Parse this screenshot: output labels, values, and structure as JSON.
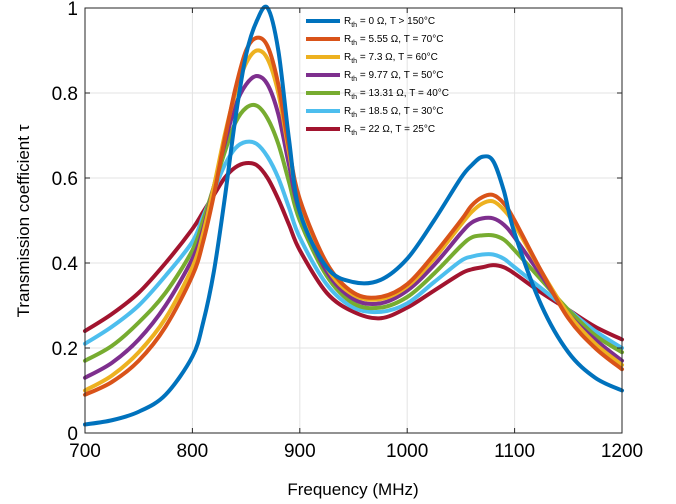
{
  "chart_data": {
    "type": "line",
    "title": "",
    "xlabel": "Frequency (MHz)",
    "ylabel": "Transmission coefficient τ",
    "xlim": [
      700,
      1200
    ],
    "ylim": [
      0,
      1
    ],
    "xticks": [
      700,
      800,
      900,
      1000,
      1100,
      1200
    ],
    "yticks": [
      0,
      0.2,
      0.4,
      0.6,
      0.8,
      1
    ],
    "xtick_labels": [
      "700",
      "800",
      "900",
      "1000",
      "1100",
      "1200"
    ],
    "ytick_labels": [
      "0",
      "0.2",
      "0.4",
      "0.6",
      "0.8",
      "1"
    ],
    "grid": true,
    "legend_position": "top-right",
    "x": [
      700,
      725,
      750,
      775,
      800,
      810,
      820,
      830,
      840,
      850,
      860,
      870,
      880,
      890,
      900,
      925,
      950,
      975,
      1000,
      1025,
      1050,
      1060,
      1070,
      1080,
      1090,
      1100,
      1125,
      1150,
      1175,
      1200
    ],
    "series": [
      {
        "name_main": "R",
        "name_sub": "th",
        "name_rest": " = 0 Ω, T > 150°C",
        "color": "#0072BD",
        "values": [
          0.02,
          0.03,
          0.05,
          0.09,
          0.18,
          0.26,
          0.38,
          0.55,
          0.74,
          0.89,
          0.97,
          1.0,
          0.9,
          0.69,
          0.52,
          0.39,
          0.355,
          0.36,
          0.41,
          0.5,
          0.6,
          0.63,
          0.65,
          0.64,
          0.57,
          0.47,
          0.3,
          0.19,
          0.13,
          0.1
        ]
      },
      {
        "name_main": "R",
        "name_sub": "th",
        "name_rest": " = 5.55 Ω, T = 70°C",
        "color": "#D95319",
        "values": [
          0.09,
          0.12,
          0.17,
          0.25,
          0.37,
          0.45,
          0.56,
          0.69,
          0.81,
          0.9,
          0.93,
          0.91,
          0.82,
          0.67,
          0.55,
          0.4,
          0.33,
          0.32,
          0.35,
          0.42,
          0.5,
          0.535,
          0.555,
          0.56,
          0.54,
          0.5,
          0.38,
          0.27,
          0.2,
          0.15
        ]
      },
      {
        "name_main": "R",
        "name_sub": "th",
        "name_rest": " = 7.3 Ω, T = 60°C",
        "color": "#EDB120",
        "values": [
          0.1,
          0.135,
          0.19,
          0.27,
          0.39,
          0.47,
          0.58,
          0.7,
          0.8,
          0.87,
          0.9,
          0.88,
          0.8,
          0.66,
          0.54,
          0.39,
          0.325,
          0.315,
          0.345,
          0.41,
          0.49,
          0.52,
          0.54,
          0.545,
          0.525,
          0.49,
          0.38,
          0.28,
          0.21,
          0.16
        ]
      },
      {
        "name_main": "R",
        "name_sub": "th",
        "name_rest": " = 9.77 Ω, T = 50°C",
        "color": "#7E2F8E",
        "values": [
          0.13,
          0.165,
          0.22,
          0.3,
          0.41,
          0.48,
          0.58,
          0.68,
          0.77,
          0.82,
          0.84,
          0.82,
          0.75,
          0.63,
          0.52,
          0.38,
          0.315,
          0.305,
          0.335,
          0.395,
          0.47,
          0.495,
          0.505,
          0.505,
          0.49,
          0.46,
          0.37,
          0.28,
          0.22,
          0.17
        ]
      },
      {
        "name_main": "R",
        "name_sub": "th",
        "name_rest": " = 13.31 Ω, T = 40°C",
        "color": "#77AC30",
        "values": [
          0.17,
          0.205,
          0.26,
          0.33,
          0.43,
          0.5,
          0.58,
          0.66,
          0.73,
          0.765,
          0.77,
          0.74,
          0.68,
          0.59,
          0.5,
          0.37,
          0.305,
          0.295,
          0.32,
          0.375,
          0.44,
          0.46,
          0.465,
          0.465,
          0.455,
          0.43,
          0.36,
          0.29,
          0.23,
          0.19
        ]
      },
      {
        "name_main": "R",
        "name_sub": "th",
        "name_rest": " = 18.5 Ω, T = 30°C",
        "color": "#4DBEEE",
        "values": [
          0.21,
          0.25,
          0.3,
          0.37,
          0.45,
          0.51,
          0.57,
          0.63,
          0.67,
          0.685,
          0.68,
          0.65,
          0.6,
          0.53,
          0.46,
          0.35,
          0.295,
          0.285,
          0.305,
          0.355,
          0.405,
          0.415,
          0.42,
          0.42,
          0.41,
          0.39,
          0.34,
          0.29,
          0.24,
          0.2
        ]
      },
      {
        "name_main": "R",
        "name_sub": "th",
        "name_rest": " = 22 Ω, T = 25°C",
        "color": "#A2142F",
        "values": [
          0.24,
          0.28,
          0.33,
          0.4,
          0.48,
          0.52,
          0.56,
          0.6,
          0.625,
          0.635,
          0.63,
          0.6,
          0.55,
          0.49,
          0.43,
          0.33,
          0.285,
          0.27,
          0.295,
          0.335,
          0.375,
          0.385,
          0.39,
          0.395,
          0.39,
          0.375,
          0.33,
          0.29,
          0.25,
          0.22
        ]
      }
    ]
  }
}
